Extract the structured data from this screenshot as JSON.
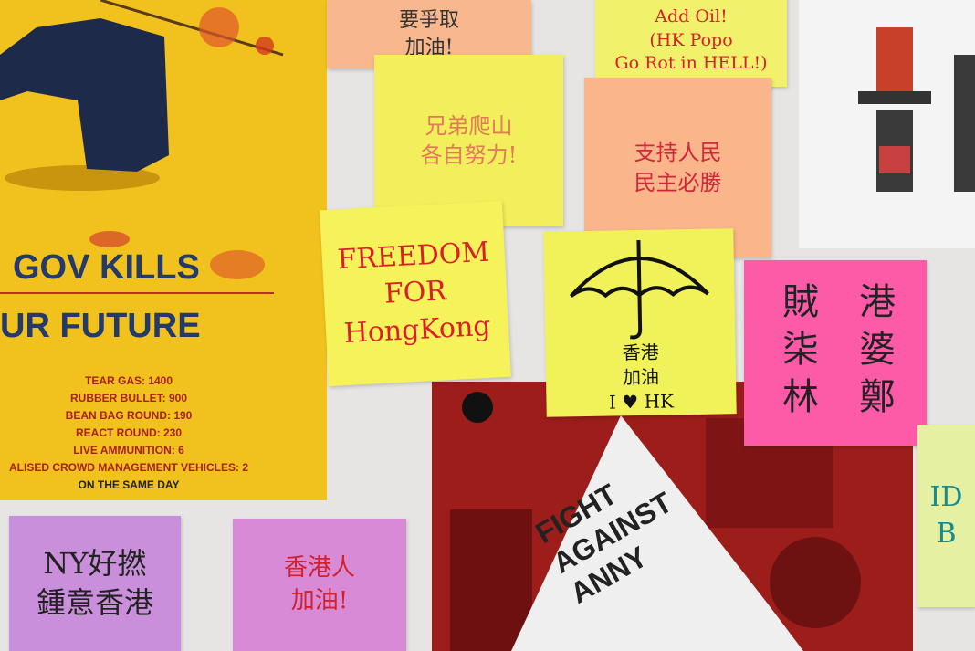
{
  "poster": {
    "headline_1": "GOV KILLS",
    "headline_2": "UR FUTURE",
    "stats": [
      "TEAR GAS: 1400",
      "RUBBER BULLET: 900",
      "BEAN BAG ROUND: 190",
      "REACT ROUND: 230",
      "LIVE AMMUNITION: 6",
      "ALISED CROWD MANAGEMENT VEHICLES: 2"
    ],
    "footer": "ON THE SAME DAY"
  },
  "notes": [
    {
      "lines": [
        "要爭取",
        "加油!"
      ]
    },
    {
      "lines": [
        "兄弟爬山",
        "各自努力!"
      ]
    },
    {
      "lines": [
        "Add Oil!",
        "(HK Popo",
        "Go Rot in HELL!)"
      ]
    },
    {
      "lines": [
        "支持人民",
        "民主必勝"
      ]
    },
    {
      "lines": [
        "FREEDOM",
        "FOR",
        "HongKong"
      ]
    },
    {
      "lines": [
        "香港",
        "加油",
        "I ♥ HK"
      ]
    },
    {
      "lines": [
        "港婆鄭",
        "賊柒林"
      ]
    },
    {
      "lines": [
        "NY好撚",
        "鍾意香港"
      ]
    },
    {
      "lines": [
        "香港人",
        "加油!"
      ]
    },
    {
      "lines": [
        "ID",
        "B"
      ]
    }
  ],
  "sign": {
    "lines": [
      "FIGHT",
      "AGAINST",
      "ANNY"
    ]
  }
}
